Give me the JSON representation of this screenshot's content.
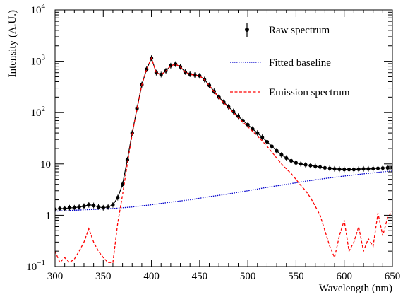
{
  "chart_data": {
    "type": "line",
    "xlabel": "Wavelength (nm)",
    "ylabel": "Intensity (A.U.)",
    "xlim": [
      300,
      650
    ],
    "ylim": [
      0.1,
      10000
    ],
    "y_scale": "log",
    "grid": false,
    "legend_position": "top-right",
    "x_ticks": [
      300,
      350,
      400,
      450,
      500,
      550,
      600,
      650
    ],
    "x_tick_labels": [
      "300",
      "350",
      "400",
      "450",
      "500",
      "550",
      "600",
      "650"
    ],
    "y_ticks": [
      0.1,
      1,
      10,
      100,
      1000,
      10000
    ],
    "y_tick_labels": [
      {
        "base": "10",
        "exp": "−1"
      },
      {
        "base": "1",
        "exp": ""
      },
      {
        "base": "10",
        "exp": ""
      },
      {
        "base": "10",
        "exp": "2"
      },
      {
        "base": "10",
        "exp": "3"
      },
      {
        "base": "10",
        "exp": "4"
      }
    ],
    "series": [
      {
        "name": "Raw spectrum",
        "style": "markers-with-errorbars",
        "color": "#000000",
        "x": [
          300,
          305,
          310,
          315,
          320,
          325,
          330,
          335,
          340,
          345,
          350,
          355,
          360,
          365,
          370,
          375,
          380,
          385,
          390,
          395,
          400,
          405,
          410,
          415,
          420,
          425,
          430,
          435,
          440,
          445,
          450,
          455,
          460,
          465,
          470,
          475,
          480,
          485,
          490,
          495,
          500,
          505,
          510,
          515,
          520,
          525,
          530,
          535,
          540,
          545,
          550,
          555,
          560,
          565,
          570,
          575,
          580,
          585,
          590,
          595,
          600,
          605,
          610,
          615,
          620,
          625,
          630,
          635,
          640,
          645,
          650
        ],
        "y": [
          1.3,
          1.35,
          1.35,
          1.4,
          1.4,
          1.45,
          1.5,
          1.6,
          1.55,
          1.45,
          1.4,
          1.45,
          1.6,
          2.2,
          4,
          12,
          40,
          120,
          350,
          700,
          1150,
          600,
          550,
          650,
          820,
          880,
          780,
          620,
          560,
          540,
          520,
          440,
          340,
          260,
          200,
          160,
          130,
          105,
          85,
          70,
          58,
          48,
          40,
          33,
          27,
          22,
          18,
          15,
          13,
          11.5,
          10.5,
          10,
          9.6,
          9.3,
          9,
          8.7,
          8.4,
          8.2,
          8,
          7.9,
          7.8,
          7.8,
          7.8,
          7.9,
          8,
          8,
          8.1,
          8.2,
          8.3,
          8.4,
          8.5
        ]
      },
      {
        "name": "Fitted baseline",
        "style": "dotted",
        "color": "#0000cc",
        "x": [
          300,
          320,
          340,
          360,
          380,
          400,
          420,
          440,
          460,
          480,
          500,
          520,
          540,
          560,
          580,
          600,
          620,
          640,
          650
        ],
        "y": [
          1.2,
          1.25,
          1.3,
          1.35,
          1.45,
          1.6,
          1.8,
          2.0,
          2.3,
          2.6,
          3.0,
          3.5,
          4.0,
          4.6,
          5.2,
          5.8,
          6.4,
          7.0,
          7.3
        ]
      },
      {
        "name": "Emission spectrum",
        "style": "dashed",
        "color": "#ff0000",
        "x": [
          300,
          305,
          310,
          315,
          320,
          325,
          330,
          335,
          340,
          345,
          350,
          355,
          360,
          365,
          370,
          375,
          380,
          385,
          390,
          395,
          400,
          405,
          410,
          415,
          420,
          425,
          430,
          435,
          440,
          445,
          450,
          455,
          460,
          465,
          470,
          475,
          480,
          485,
          490,
          495,
          500,
          505,
          510,
          515,
          520,
          525,
          530,
          535,
          540,
          545,
          550,
          555,
          560,
          565,
          570,
          575,
          580,
          585,
          590,
          595,
          600,
          605,
          610,
          615,
          620,
          625,
          630,
          635,
          640,
          645,
          650
        ],
        "y": [
          0.2,
          0.12,
          0.15,
          0.12,
          0.14,
          0.2,
          0.3,
          0.55,
          0.3,
          0.2,
          0.15,
          0.12,
          0.12,
          0.7,
          2.5,
          10,
          38,
          118,
          345,
          695,
          1145,
          595,
          545,
          645,
          815,
          875,
          775,
          615,
          555,
          535,
          515,
          435,
          335,
          255,
          195,
          155,
          125,
          100,
          80,
          65,
          53,
          43,
          35,
          28,
          22,
          17,
          13,
          10,
          8,
          6.5,
          5,
          3.8,
          3,
          2.2,
          1.5,
          1,
          0.5,
          0.25,
          0.15,
          0.4,
          0.8,
          0.2,
          0.3,
          0.6,
          0.2,
          0.35,
          0.25,
          1.1,
          0.4,
          0.9,
          1.2
        ]
      }
    ]
  }
}
